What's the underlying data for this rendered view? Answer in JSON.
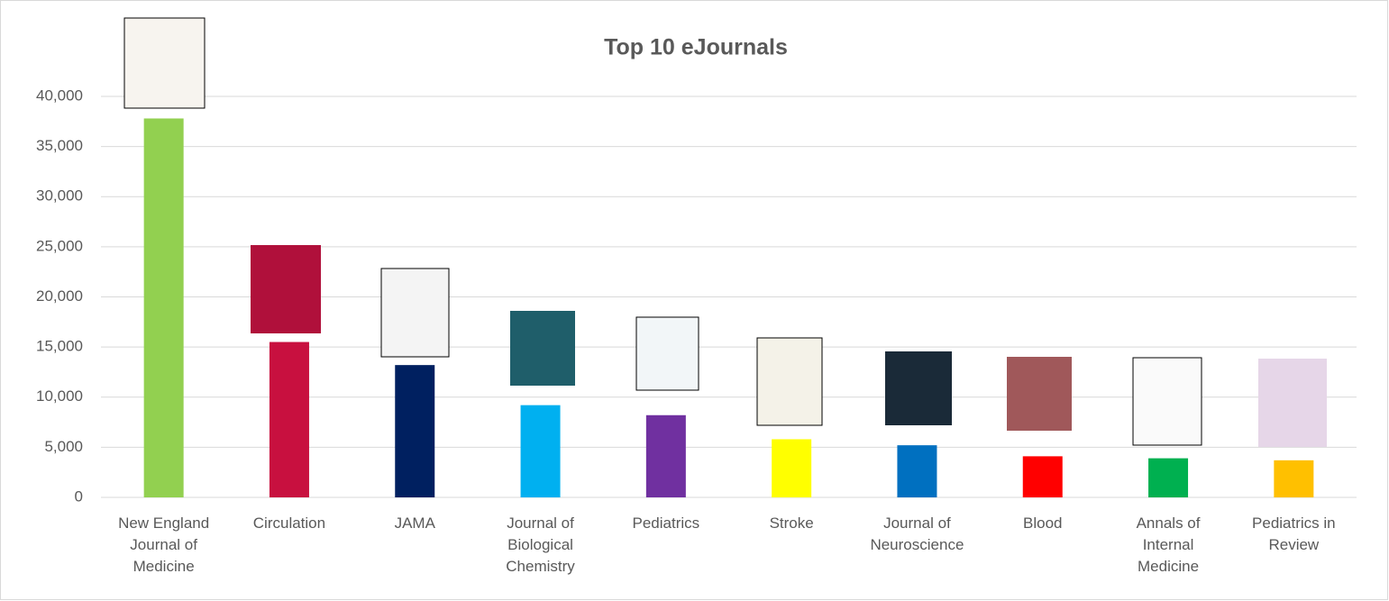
{
  "chart_data": {
    "type": "bar",
    "title": "Top 10 eJournals",
    "categories": [
      "New England Journal of Medicine",
      "Circulation",
      "JAMA",
      "Journal of Biological Chemistry",
      "Pediatrics",
      "Stroke",
      "Journal of Neuroscience",
      "Blood",
      "Annals of Internal Medicine",
      "Pediatrics in Review"
    ],
    "values": [
      37800,
      15500,
      13200,
      9200,
      8200,
      5800,
      5200,
      4100,
      3900,
      3700
    ],
    "colors": [
      "#92d050",
      "#c8103f",
      "#002060",
      "#00b0f0",
      "#7030a0",
      "#ffff00",
      "#0070c0",
      "#ff0000",
      "#00b050",
      "#ffc000"
    ],
    "ylim": [
      0,
      40000
    ],
    "yticks": [
      0,
      {
        "value": 5000,
        "label": "5,000"
      },
      {
        "value": 10000,
        "label": "10,000"
      },
      {
        "value": 15000,
        "label": "15,000"
      },
      {
        "value": 20000,
        "label": "20,000"
      },
      {
        "value": 25000,
        "label": "25,000"
      },
      {
        "value": 30000,
        "label": "30,000"
      },
      {
        "value": 35000,
        "label": "35,000"
      },
      {
        "value": 40000,
        "label": "40,000"
      }
    ],
    "grid": true
  }
}
